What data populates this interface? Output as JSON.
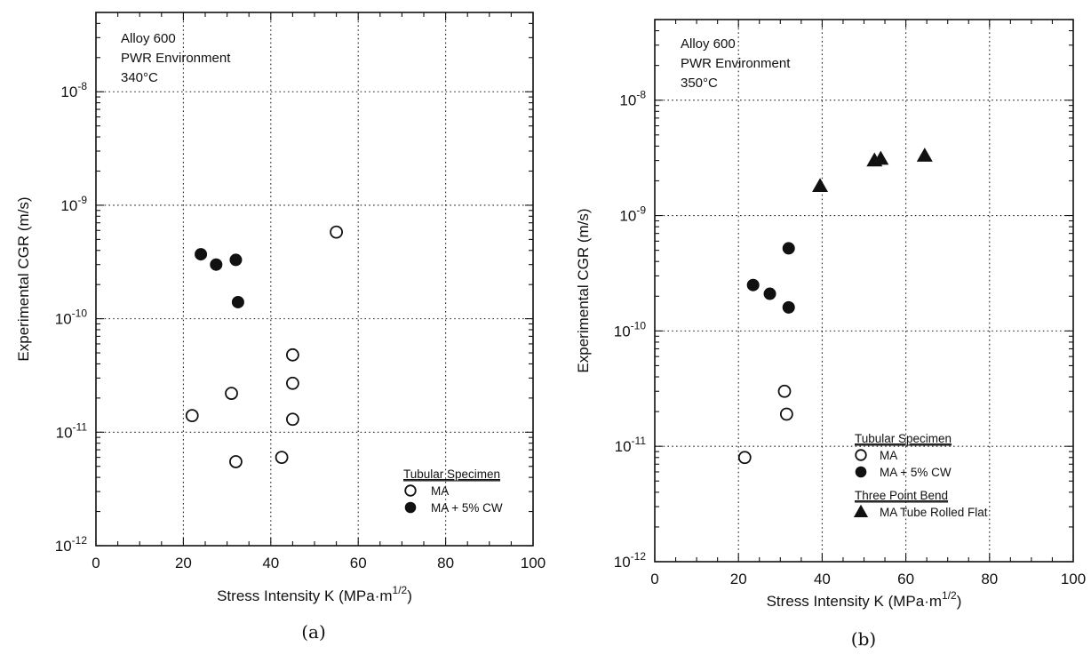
{
  "chart_data": [
    {
      "type": "scatter",
      "panel_label": "(a)",
      "xlabel": "Stress Intensity K (MPa·m",
      "xlabel_sup": "1/2",
      "xlabel_end": ")",
      "ylabel": "Experimental CGR (m/s)",
      "xlim": [
        0,
        100
      ],
      "ylim": [
        1e-12,
        5e-08
      ],
      "yscale": "log",
      "xticks": [
        "0",
        "20",
        "40",
        "60",
        "80",
        "100"
      ],
      "yticks": [
        {
          "base": "10",
          "exp": "-12"
        },
        {
          "base": "10",
          "exp": "-11"
        },
        {
          "base": "10",
          "exp": "-10"
        },
        {
          "base": "10",
          "exp": "-9"
        },
        {
          "base": "10",
          "exp": "-8"
        }
      ],
      "grid": true,
      "annotations": [
        "Alloy 600",
        "PWR Environment",
        "340°C"
      ],
      "legend": {
        "position": "bottom-right",
        "groups": [
          {
            "title": "Tubular Specimen",
            "entries": [
              {
                "label": "MA",
                "marker": "open-circle"
              },
              {
                "label": "MA + 5% CW",
                "marker": "filled-circle"
              }
            ]
          }
        ]
      },
      "series": [
        {
          "name": "MA",
          "marker": "open-circle",
          "points": [
            {
              "x": 22,
              "y": 1.4e-11
            },
            {
              "x": 31,
              "y": 2.2e-11
            },
            {
              "x": 32,
              "y": 5.5e-12
            },
            {
              "x": 42.5,
              "y": 6e-12
            },
            {
              "x": 45,
              "y": 1.3e-11
            },
            {
              "x": 45,
              "y": 2.7e-11
            },
            {
              "x": 45,
              "y": 4.8e-11
            },
            {
              "x": 55,
              "y": 5.8e-10
            }
          ]
        },
        {
          "name": "MA + 5% CW",
          "marker": "filled-circle",
          "points": [
            {
              "x": 24,
              "y": 3.7e-10
            },
            {
              "x": 27.5,
              "y": 3e-10
            },
            {
              "x": 32,
              "y": 3.3e-10
            },
            {
              "x": 32.5,
              "y": 1.4e-10
            }
          ]
        }
      ]
    },
    {
      "type": "scatter",
      "panel_label": "(b)",
      "xlabel": "Stress Intensity K (MPa·m",
      "xlabel_sup": "1/2",
      "xlabel_end": ")",
      "ylabel": "Experimental CGR (m/s)",
      "xlim": [
        0,
        100
      ],
      "ylim": [
        1e-12,
        5e-08
      ],
      "yscale": "log",
      "xticks": [
        "0",
        "20",
        "40",
        "60",
        "80",
        "100"
      ],
      "yticks": [
        {
          "base": "10",
          "exp": "-12"
        },
        {
          "base": "10",
          "exp": "-11"
        },
        {
          "base": "10",
          "exp": "-10"
        },
        {
          "base": "10",
          "exp": "-9"
        },
        {
          "base": "10",
          "exp": "-8"
        }
      ],
      "grid": true,
      "annotations": [
        "Alloy 600",
        "PWR Environment",
        "350°C"
      ],
      "legend": {
        "position": "bottom-right",
        "groups": [
          {
            "title": "Tubular Specimen",
            "entries": [
              {
                "label": "MA",
                "marker": "open-circle"
              },
              {
                "label": "MA + 5% CW",
                "marker": "filled-circle"
              }
            ]
          },
          {
            "title": "Three Point Bend",
            "entries": [
              {
                "label": "MA Tube Rolled Flat",
                "marker": "filled-triangle"
              }
            ]
          }
        ]
      },
      "series": [
        {
          "name": "MA",
          "marker": "open-circle",
          "points": [
            {
              "x": 21.5,
              "y": 8e-12
            },
            {
              "x": 31,
              "y": 3e-11
            },
            {
              "x": 31.5,
              "y": 1.9e-11
            }
          ]
        },
        {
          "name": "MA + 5% CW",
          "marker": "filled-circle",
          "points": [
            {
              "x": 23.5,
              "y": 2.5e-10
            },
            {
              "x": 27.5,
              "y": 2.1e-10
            },
            {
              "x": 32,
              "y": 5.2e-10
            },
            {
              "x": 32,
              "y": 1.6e-10
            }
          ]
        },
        {
          "name": "MA Tube Rolled Flat",
          "marker": "filled-triangle",
          "points": [
            {
              "x": 39.5,
              "y": 1.8e-09
            },
            {
              "x": 52.5,
              "y": 3e-09
            },
            {
              "x": 54,
              "y": 3.1e-09
            },
            {
              "x": 64.5,
              "y": 3.3e-09
            }
          ]
        }
      ]
    }
  ]
}
